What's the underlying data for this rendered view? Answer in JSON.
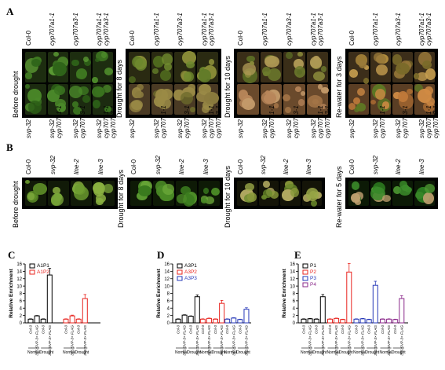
{
  "panels": {
    "A": {
      "label": "A",
      "top_labels": [
        "Col-0",
        "cyp707a1-1",
        "cyp707a3-1",
        "cyp707a1-1\ncyp707a3-1"
      ],
      "bottom_labels": [
        "svp-32",
        "svp-32\ncyp707a1-1",
        "svp-32\ncyp707a3-1",
        "svp-32\ncyp707a1-1\ncyp707a3-1"
      ],
      "conditions": [
        "Before drought",
        "Drought for 8 days",
        "Drought for 10 days",
        "Re-water for 3 days"
      ]
    },
    "B": {
      "label": "B",
      "top_labels": [
        "Col-0",
        "svp-32",
        "line-2",
        "line-3"
      ],
      "conditions": [
        "Before drought",
        "Drought for 8 days",
        "Drought for 10 days",
        "Re-water for 5 days"
      ]
    },
    "C": {
      "label": "C"
    },
    "D": {
      "label": "D"
    },
    "E": {
      "label": "E"
    }
  },
  "chart_data": [
    {
      "type": "bar",
      "ylabel": "Relative Enrichment",
      "ylim": [
        0,
        16
      ],
      "yticks": [
        0,
        2,
        4,
        6,
        8,
        10,
        12,
        14,
        16
      ],
      "categories": [
        "Col-0",
        "35S:SVP-3× FLAG",
        "Col-0",
        "35S:SVP-3× FLAG"
      ],
      "condition_labels": [
        "Normal",
        "Drought"
      ],
      "series": [
        {
          "name": "A1P1",
          "color": "#000000",
          "values": [
            1.0,
            1.9,
            1.0,
            13.0
          ],
          "errors": [
            0.1,
            0.1,
            0.1,
            1.8
          ]
        },
        {
          "name": "A1P2",
          "color": "#e8241f",
          "values": [
            1.0,
            1.9,
            1.0,
            6.6
          ],
          "errors": [
            0.1,
            0.2,
            0.1,
            1.1
          ]
        }
      ]
    },
    {
      "type": "bar",
      "ylabel": "Relative Enrichment",
      "ylim": [
        0,
        16
      ],
      "yticks": [
        0,
        2,
        4,
        6,
        8,
        10,
        12,
        14,
        16
      ],
      "categories": [
        "Col-0",
        "35S:SVP-3× FLAG",
        "Col-0",
        "35S:SVP-3× FLAG"
      ],
      "condition_labels": [
        "Normal",
        "Drought"
      ],
      "series": [
        {
          "name": "A3P1",
          "color": "#000000",
          "values": [
            1.0,
            2.1,
            1.8,
            7.1
          ],
          "errors": [
            0.1,
            0.1,
            0.1,
            0.5
          ]
        },
        {
          "name": "A3P2",
          "color": "#e8241f",
          "values": [
            1.0,
            1.2,
            1.0,
            5.3
          ],
          "errors": [
            0.1,
            0.1,
            0.1,
            0.8
          ]
        },
        {
          "name": "A3P3",
          "color": "#2638b8",
          "values": [
            1.0,
            1.3,
            0.9,
            3.7
          ],
          "errors": [
            0.1,
            0.1,
            0.1,
            0.4
          ]
        }
      ]
    },
    {
      "type": "bar",
      "ylabel": "Relative Enrichment",
      "ylim": [
        0,
        16
      ],
      "yticks": [
        0,
        2,
        4,
        6,
        8,
        10,
        12,
        14,
        16
      ],
      "categories": [
        "Col-0",
        "35S:SVP-3× FLAG",
        "Col-0",
        "35S:SVP-3× FLAG"
      ],
      "condition_labels": [
        "Normal",
        "Drought"
      ],
      "series": [
        {
          "name": "P1",
          "color": "#000000",
          "values": [
            1.0,
            1.1,
            1.0,
            7.1
          ],
          "errors": [
            0.1,
            0.1,
            0.1,
            0.6
          ]
        },
        {
          "name": "P2",
          "color": "#e8241f",
          "values": [
            1.0,
            1.2,
            0.9,
            13.8
          ],
          "errors": [
            0.1,
            0.1,
            0.1,
            2.3
          ]
        },
        {
          "name": "P3",
          "color": "#2638b8",
          "values": [
            1.0,
            1.1,
            0.9,
            10.2
          ],
          "errors": [
            0.1,
            0.1,
            0.1,
            1.1
          ]
        },
        {
          "name": "P4",
          "color": "#8b2a8b",
          "values": [
            1.0,
            1.0,
            0.9,
            6.6
          ],
          "errors": [
            0.1,
            0.1,
            0.1,
            0.8
          ]
        }
      ]
    }
  ]
}
